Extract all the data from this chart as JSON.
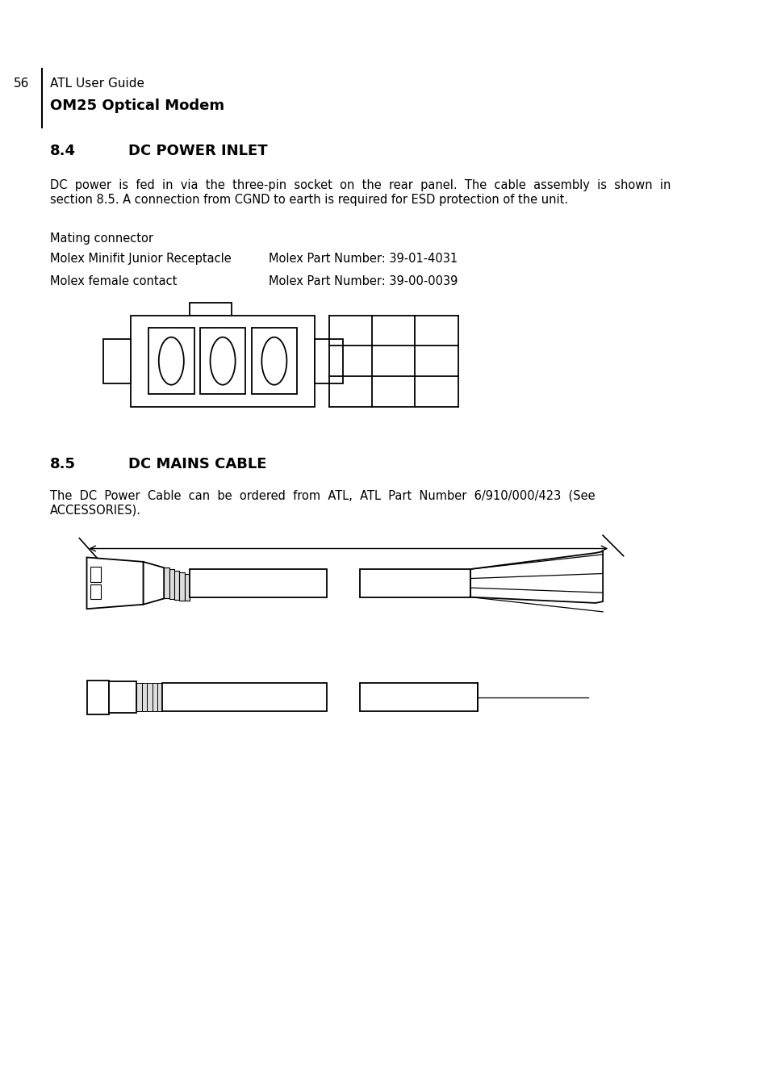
{
  "page_number": "56",
  "header_line1": "ATL User Guide",
  "header_line2": "OM25 Optical Modem",
  "section_84_number": "8.4",
  "section_84_title": "DC POWER INLET",
  "body_84_line1": "DC  power  is  fed  in  via  the  three-pin  socket  on  the  rear  panel.  The  cable  assembly  is  shown  in",
  "body_84_line2": "section 8.5. A connection from CGND to earth is required for ESD protection of the unit.",
  "mating_label": "Mating connector",
  "row1_left": "Molex Minifit Junior Receptacle",
  "row1_right": "Molex Part Number: 39-01-4031",
  "row2_left": "Molex female contact",
  "row2_right": "Molex Part Number: 39-00-0039",
  "section_85_number": "8.5",
  "section_85_title": "DC MAINS CABLE",
  "body_85_line1": "The  DC  Power  Cable  can  be  ordered  from  ATL,  ATL  Part  Number  6/910/000/423  (See",
  "body_85_line2": "ACCESSORIES).",
  "bg_color": "#ffffff",
  "text_color": "#000000"
}
